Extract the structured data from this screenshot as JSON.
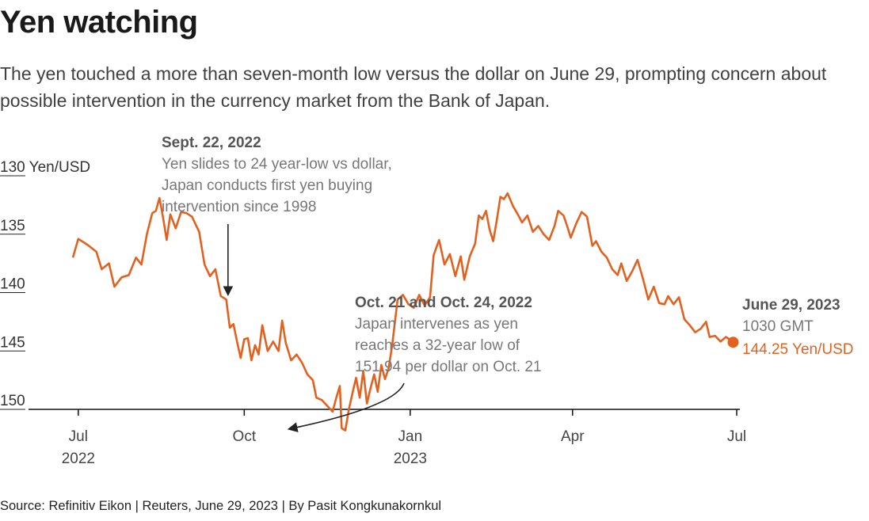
{
  "title": "Yen watching",
  "subtitle": "The yen touched a more than seven-month low versus the dollar on June 29, prompting concern about possible intervention in the currency market from the Bank of Japan.",
  "source": "Source: Refinitiv Eikon | Reuters, June 29, 2023 | By Pasit Kongkunakornkul",
  "colors": {
    "line": "#e3611f",
    "axis": "#111111",
    "annotation_arrow": "#222222"
  },
  "chart_data": {
    "type": "line",
    "y_inverted": true,
    "ylim": [
      130,
      150
    ],
    "yticks": [
      {
        "value": 130,
        "label": "130 Yen/USD"
      },
      {
        "value": 135,
        "label": "135"
      },
      {
        "value": 140,
        "label": "140"
      },
      {
        "value": 145,
        "label": "145"
      },
      {
        "value": 150,
        "label": "150"
      }
    ],
    "xlim": [
      "2022-06-28",
      "2023-07-01"
    ],
    "xticks": [
      {
        "date": "2022-07-01",
        "label": "Jul",
        "sub": "2022"
      },
      {
        "date": "2022-10-01",
        "label": "Oct",
        "sub": ""
      },
      {
        "date": "2023-01-01",
        "label": "Jan",
        "sub": "2023"
      },
      {
        "date": "2023-04-01",
        "label": "Apr",
        "sub": ""
      },
      {
        "date": "2023-07-01",
        "label": "Jul",
        "sub": ""
      }
    ],
    "series": [
      {
        "points": [
          [
            "2022-06-28",
            137.0
          ],
          [
            "2022-07-01",
            135.4
          ],
          [
            "2022-07-06",
            135.9
          ],
          [
            "2022-07-11",
            136.5
          ],
          [
            "2022-07-14",
            138.0
          ],
          [
            "2022-07-18",
            137.5
          ],
          [
            "2022-07-21",
            139.5
          ],
          [
            "2022-07-25",
            138.7
          ],
          [
            "2022-07-29",
            138.5
          ],
          [
            "2022-08-02",
            137.0
          ],
          [
            "2022-08-05",
            137.6
          ],
          [
            "2022-08-08",
            135.0
          ],
          [
            "2022-08-11",
            133.2
          ],
          [
            "2022-08-13",
            133.0
          ],
          [
            "2022-08-15",
            131.9
          ],
          [
            "2022-08-17",
            133.6
          ],
          [
            "2022-08-19",
            135.5
          ],
          [
            "2022-08-21",
            133.3
          ],
          [
            "2022-08-24",
            134.5
          ],
          [
            "2022-08-27",
            133.1
          ],
          [
            "2022-08-30",
            133.2
          ],
          [
            "2022-09-02",
            133.5
          ],
          [
            "2022-09-06",
            134.8
          ],
          [
            "2022-09-09",
            137.6
          ],
          [
            "2022-09-12",
            138.6
          ],
          [
            "2022-09-15",
            138.0
          ],
          [
            "2022-09-18",
            140.3
          ],
          [
            "2022-09-21",
            140.6
          ],
          [
            "2022-09-23",
            143.0
          ],
          [
            "2022-09-25",
            142.7
          ],
          [
            "2022-09-27",
            144.2
          ],
          [
            "2022-09-29",
            145.6
          ],
          [
            "2022-10-01",
            144.0
          ],
          [
            "2022-10-03",
            143.9
          ],
          [
            "2022-10-05",
            145.8
          ],
          [
            "2022-10-07",
            144.5
          ],
          [
            "2022-10-09",
            145.3
          ],
          [
            "2022-10-11",
            142.8
          ],
          [
            "2022-10-14",
            145.0
          ],
          [
            "2022-10-17",
            144.2
          ],
          [
            "2022-10-20",
            145.0
          ],
          [
            "2022-10-22",
            142.4
          ],
          [
            "2022-10-24",
            144.3
          ],
          [
            "2022-10-27",
            145.8
          ],
          [
            "2022-10-30",
            145.3
          ],
          [
            "2022-11-02",
            146.0
          ],
          [
            "2022-11-05",
            147.0
          ],
          [
            "2022-11-08",
            147.5
          ],
          [
            "2022-11-10",
            149.0
          ],
          [
            "2022-11-13",
            149.2
          ],
          [
            "2022-11-16",
            149.7
          ],
          [
            "2022-11-19",
            150.2
          ],
          [
            "2022-11-21",
            149.0
          ],
          [
            "2022-11-23",
            148.0
          ],
          [
            "2022-11-24",
            151.6
          ],
          [
            "2022-11-26",
            151.8
          ],
          [
            "2022-11-28",
            150.0
          ],
          [
            "2022-11-30",
            148.6
          ],
          [
            "2022-12-02",
            147.3
          ],
          [
            "2022-12-04",
            149.0
          ],
          [
            "2022-12-06",
            146.7
          ],
          [
            "2022-12-08",
            149.5
          ],
          [
            "2022-12-10",
            148.2
          ],
          [
            "2022-12-12",
            147.0
          ],
          [
            "2022-12-14",
            148.5
          ],
          [
            "2022-12-16",
            146.2
          ],
          [
            "2022-12-18",
            147.4
          ],
          [
            "2022-12-20",
            146.5
          ],
          [
            "2022-12-22",
            144.5
          ],
          [
            "2022-12-25",
            140.6
          ],
          [
            "2022-12-28",
            140.2
          ],
          [
            "2022-12-31",
            141.0
          ],
          [
            "2023-01-03",
            141.3
          ],
          [
            "2023-01-06",
            140.2
          ],
          [
            "2023-01-09",
            141.1
          ],
          [
            "2023-01-12",
            140.4
          ],
          [
            "2023-01-14",
            136.8
          ],
          [
            "2023-01-17",
            135.5
          ],
          [
            "2023-01-20",
            137.6
          ],
          [
            "2023-01-23",
            136.7
          ],
          [
            "2023-01-26",
            138.6
          ],
          [
            "2023-01-29",
            136.9
          ],
          [
            "2023-01-31",
            138.9
          ],
          [
            "2023-02-03",
            136.9
          ],
          [
            "2023-02-06",
            135.8
          ],
          [
            "2023-02-08",
            133.4
          ],
          [
            "2023-02-10",
            133.7
          ],
          [
            "2023-02-12",
            133.0
          ],
          [
            "2023-02-14",
            134.6
          ],
          [
            "2023-02-16",
            135.6
          ],
          [
            "2023-02-18",
            133.8
          ],
          [
            "2023-02-20",
            131.8
          ],
          [
            "2023-02-22",
            132.0
          ],
          [
            "2023-02-24",
            131.5
          ],
          [
            "2023-02-27",
            132.6
          ],
          [
            "2023-03-02",
            133.4
          ],
          [
            "2023-03-04",
            134.0
          ],
          [
            "2023-03-07",
            133.4
          ],
          [
            "2023-03-10",
            134.8
          ],
          [
            "2023-03-13",
            134.3
          ],
          [
            "2023-03-16",
            135.0
          ],
          [
            "2023-03-19",
            135.5
          ],
          [
            "2023-03-22",
            134.3
          ],
          [
            "2023-03-24",
            133.0
          ],
          [
            "2023-03-27",
            133.4
          ],
          [
            "2023-03-29",
            134.3
          ],
          [
            "2023-03-31",
            135.3
          ],
          [
            "2023-04-03",
            134.1
          ],
          [
            "2023-04-06",
            133.1
          ],
          [
            "2023-04-09",
            133.5
          ],
          [
            "2023-04-12",
            136.0
          ],
          [
            "2023-04-14",
            135.6
          ],
          [
            "2023-04-17",
            136.5
          ],
          [
            "2023-04-20",
            137.0
          ],
          [
            "2023-04-23",
            138.0
          ],
          [
            "2023-04-26",
            138.5
          ],
          [
            "2023-04-28",
            137.5
          ],
          [
            "2023-05-01",
            139.0
          ],
          [
            "2023-05-04",
            138.2
          ],
          [
            "2023-05-07",
            137.2
          ],
          [
            "2023-05-10",
            138.8
          ],
          [
            "2023-05-13",
            140.6
          ],
          [
            "2023-05-16",
            139.5
          ],
          [
            "2023-05-19",
            140.9
          ],
          [
            "2023-05-22",
            141.0
          ],
          [
            "2023-05-24",
            140.3
          ],
          [
            "2023-05-27",
            141.0
          ],
          [
            "2023-05-30",
            140.4
          ],
          [
            "2023-06-02",
            142.3
          ],
          [
            "2023-06-05",
            142.8
          ],
          [
            "2023-06-08",
            143.4
          ],
          [
            "2023-06-11",
            143.1
          ],
          [
            "2023-06-14",
            142.5
          ],
          [
            "2023-06-16",
            143.8
          ],
          [
            "2023-06-19",
            143.7
          ],
          [
            "2023-06-22",
            144.2
          ],
          [
            "2023-06-25",
            143.8
          ],
          [
            "2023-06-27",
            144.0
          ],
          [
            "2023-06-29",
            144.25
          ]
        ]
      }
    ],
    "annotations": [
      {
        "id": "sept22",
        "date": "2022-09-22",
        "value": 140.5,
        "heading": "Sept. 22, 2022",
        "lines": [
          "Yen slides to 24 year-low vs dollar,",
          "Japan conducts first yen buying",
          "intervention since 1998"
        ]
      },
      {
        "id": "oct21",
        "date": "2022-10-21",
        "value": 151.94,
        "heading": "Oct. 21 and Oct. 24, 2022",
        "lines": [
          "Japan intervenes as yen",
          "reaches a 32-year low of",
          "151.94 per dollar on Oct. 21"
        ]
      }
    ],
    "end_label": {
      "date": "2023-06-29",
      "value": 144.25,
      "heading": "June 29, 2023",
      "time": "1030 GMT",
      "value_text": "144.25 Yen/USD"
    }
  }
}
